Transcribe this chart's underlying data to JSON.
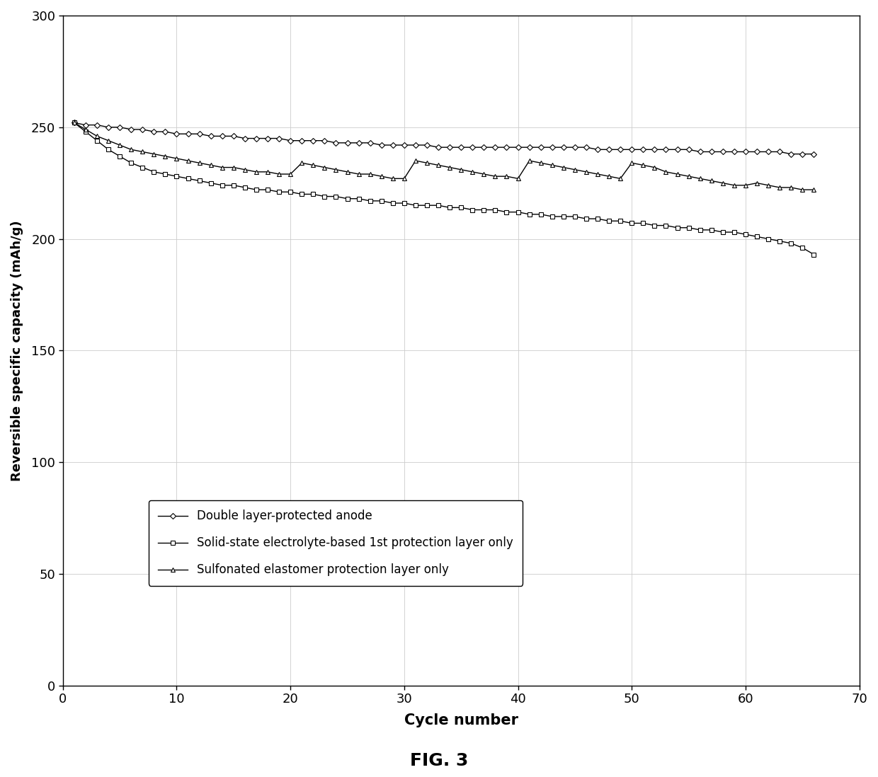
{
  "title": "FIG. 3",
  "xlabel": "Cycle number",
  "ylabel": "Reversible specific capacity (mAh/g)",
  "xlim": [
    0,
    70
  ],
  "ylim": [
    0,
    300
  ],
  "xticks": [
    0,
    10,
    20,
    30,
    40,
    50,
    60,
    70
  ],
  "yticks": [
    0,
    50,
    100,
    150,
    200,
    250,
    300
  ],
  "series": [
    {
      "label": "Double layer-protected anode",
      "marker": "D",
      "x": [
        1,
        2,
        3,
        4,
        5,
        6,
        7,
        8,
        9,
        10,
        11,
        12,
        13,
        14,
        15,
        16,
        17,
        18,
        19,
        20,
        21,
        22,
        23,
        24,
        25,
        26,
        27,
        28,
        29,
        30,
        31,
        32,
        33,
        34,
        35,
        36,
        37,
        38,
        39,
        40,
        41,
        42,
        43,
        44,
        45,
        46,
        47,
        48,
        49,
        50,
        51,
        52,
        53,
        54,
        55,
        56,
        57,
        58,
        59,
        60,
        61,
        62,
        63,
        64,
        65,
        66
      ],
      "y": [
        252,
        251,
        251,
        250,
        250,
        249,
        249,
        248,
        248,
        247,
        247,
        247,
        246,
        246,
        246,
        245,
        245,
        245,
        245,
        244,
        244,
        244,
        244,
        243,
        243,
        243,
        243,
        242,
        242,
        242,
        242,
        242,
        241,
        241,
        241,
        241,
        241,
        241,
        241,
        241,
        241,
        241,
        241,
        241,
        241,
        241,
        240,
        240,
        240,
        240,
        240,
        240,
        240,
        240,
        240,
        239,
        239,
        239,
        239,
        239,
        239,
        239,
        239,
        238,
        238,
        238
      ]
    },
    {
      "label": "Solid-state electrolyte-based 1st protection layer only",
      "marker": "s",
      "x": [
        1,
        2,
        3,
        4,
        5,
        6,
        7,
        8,
        9,
        10,
        11,
        12,
        13,
        14,
        15,
        16,
        17,
        18,
        19,
        20,
        21,
        22,
        23,
        24,
        25,
        26,
        27,
        28,
        29,
        30,
        31,
        32,
        33,
        34,
        35,
        36,
        37,
        38,
        39,
        40,
        41,
        42,
        43,
        44,
        45,
        46,
        47,
        48,
        49,
        50,
        51,
        52,
        53,
        54,
        55,
        56,
        57,
        58,
        59,
        60,
        61,
        62,
        63,
        64,
        65,
        66
      ],
      "y": [
        252,
        248,
        244,
        240,
        237,
        234,
        232,
        230,
        229,
        228,
        227,
        226,
        225,
        224,
        224,
        223,
        222,
        222,
        221,
        221,
        220,
        220,
        219,
        219,
        218,
        218,
        217,
        217,
        216,
        216,
        215,
        215,
        215,
        214,
        214,
        213,
        213,
        213,
        212,
        212,
        211,
        211,
        210,
        210,
        210,
        209,
        209,
        208,
        208,
        207,
        207,
        206,
        206,
        205,
        205,
        204,
        204,
        203,
        203,
        202,
        201,
        200,
        199,
        198,
        196,
        193
      ]
    },
    {
      "label": "Sulfonated elastomer protection layer only",
      "marker": "^",
      "x": [
        1,
        2,
        3,
        4,
        5,
        6,
        7,
        8,
        9,
        10,
        11,
        12,
        13,
        14,
        15,
        16,
        17,
        18,
        19,
        20,
        21,
        22,
        23,
        24,
        25,
        26,
        27,
        28,
        29,
        30,
        31,
        32,
        33,
        34,
        35,
        36,
        37,
        38,
        39,
        40,
        41,
        42,
        43,
        44,
        45,
        46,
        47,
        48,
        49,
        50,
        51,
        52,
        53,
        54,
        55,
        56,
        57,
        58,
        59,
        60,
        61,
        62,
        63,
        64,
        65,
        66
      ],
      "y": [
        252,
        249,
        246,
        244,
        242,
        240,
        239,
        238,
        237,
        236,
        235,
        234,
        233,
        232,
        232,
        231,
        230,
        230,
        229,
        229,
        234,
        233,
        232,
        231,
        230,
        229,
        229,
        228,
        227,
        227,
        235,
        234,
        233,
        232,
        231,
        230,
        229,
        228,
        228,
        227,
        235,
        234,
        233,
        232,
        231,
        230,
        229,
        228,
        227,
        234,
        233,
        232,
        230,
        229,
        228,
        227,
        226,
        225,
        224,
        224,
        225,
        224,
        223,
        223,
        222,
        222
      ]
    }
  ],
  "background_color": "#ffffff",
  "line_color": "#000000",
  "markersize": 4,
  "linewidth": 1.0
}
